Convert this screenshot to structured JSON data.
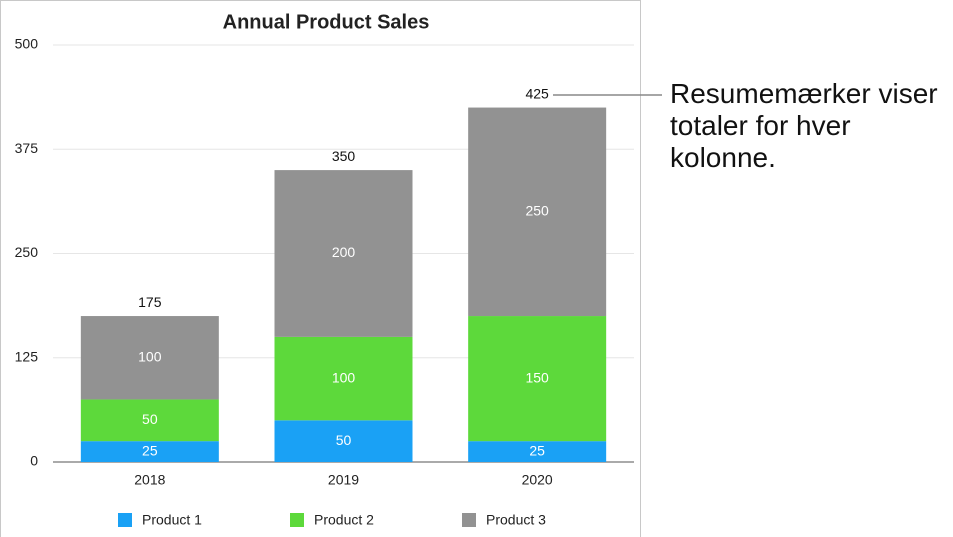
{
  "chart_data": {
    "type": "stacked-bar",
    "title": "Annual Product Sales",
    "categories": [
      "2018",
      "2019",
      "2020"
    ],
    "series": [
      {
        "name": "Product 1",
        "color": "#1aa1f5",
        "values": [
          25,
          50,
          25
        ]
      },
      {
        "name": "Product 2",
        "color": "#5dd93b",
        "values": [
          50,
          100,
          150
        ]
      },
      {
        "name": "Product 3",
        "color": "#929292",
        "values": [
          100,
          200,
          250
        ]
      }
    ],
    "totals": [
      175,
      350,
      425
    ],
    "ylim": [
      0,
      500
    ],
    "yticks": [
      0,
      125,
      250,
      375,
      500
    ],
    "grid": true,
    "legend": "bottom",
    "annotation": "Resumemærker viser totaler for hver kolonne."
  }
}
